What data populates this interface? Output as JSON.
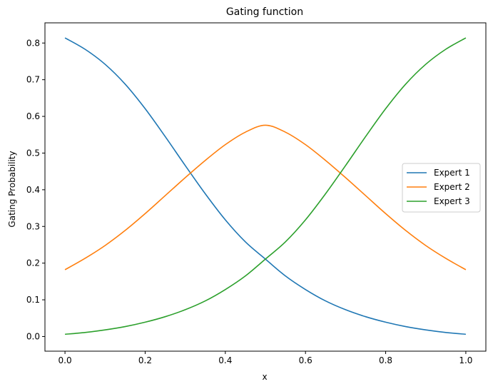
{
  "chart_data": {
    "type": "line",
    "title": "Gating function",
    "xlabel": "x",
    "ylabel": "Gating Probability",
    "xlim": [
      -0.05,
      1.05
    ],
    "ylim": [
      -0.04,
      0.855
    ],
    "xticks": [
      0.0,
      0.2,
      0.4,
      0.6,
      0.8,
      1.0
    ],
    "xtick_labels": [
      "0.0",
      "0.2",
      "0.4",
      "0.6",
      "0.8",
      "1.0"
    ],
    "yticks": [
      0.0,
      0.1,
      0.2,
      0.3,
      0.4,
      0.5,
      0.6,
      0.7,
      0.8
    ],
    "ytick_labels": [
      "0.0",
      "0.1",
      "0.2",
      "0.3",
      "0.4",
      "0.5",
      "0.6",
      "0.7",
      "0.8"
    ],
    "grid": false,
    "legend_position": "center-right",
    "x": [
      0.0,
      0.05,
      0.1,
      0.15,
      0.2,
      0.25,
      0.3,
      0.35,
      0.4,
      0.45,
      0.5,
      0.55,
      0.6,
      0.65,
      0.7,
      0.75,
      0.8,
      0.85,
      0.9,
      0.95,
      1.0
    ],
    "series": [
      {
        "name": "Expert 1",
        "color": "#1f77b4",
        "values": [
          0.814,
          0.783,
          0.742,
          0.688,
          0.621,
          0.545,
          0.466,
          0.389,
          0.318,
          0.258,
          0.211,
          0.165,
          0.128,
          0.097,
          0.073,
          0.054,
          0.039,
          0.027,
          0.018,
          0.011,
          0.006
        ]
      },
      {
        "name": "Expert 2",
        "color": "#ff7f0e",
        "values": [
          0.182,
          0.213,
          0.248,
          0.289,
          0.335,
          0.384,
          0.433,
          0.48,
          0.523,
          0.557,
          0.576,
          0.557,
          0.523,
          0.48,
          0.433,
          0.384,
          0.335,
          0.289,
          0.248,
          0.213,
          0.182
        ]
      },
      {
        "name": "Expert 3",
        "color": "#2ca02c",
        "values": [
          0.006,
          0.011,
          0.018,
          0.027,
          0.039,
          0.054,
          0.073,
          0.097,
          0.128,
          0.165,
          0.211,
          0.258,
          0.318,
          0.389,
          0.466,
          0.545,
          0.621,
          0.688,
          0.742,
          0.783,
          0.814
        ]
      }
    ]
  }
}
